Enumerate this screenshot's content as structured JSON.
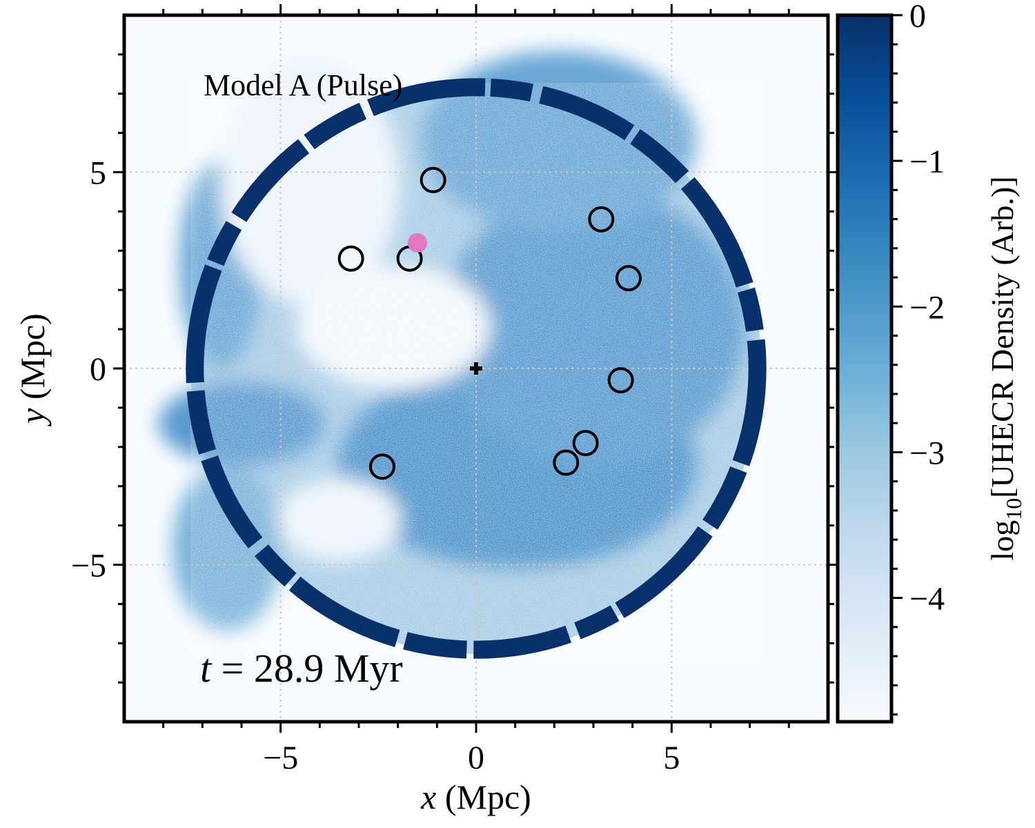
{
  "chart_data": {
    "type": "heatmap",
    "annotation_model": "Model A (Pulse)",
    "annotation_time": {
      "symbol": "t",
      "eq": " = ",
      "value": "28.9 Myr"
    },
    "xlabel": {
      "symbol": "x",
      "unit": " (Mpc)"
    },
    "ylabel": {
      "symbol": "y",
      "unit": " (Mpc)"
    },
    "xlim": [
      -9,
      9
    ],
    "ylim": [
      -9,
      9
    ],
    "x_ticks": [
      {
        "value": -5,
        "label": "−5"
      },
      {
        "value": 0,
        "label": "0"
      },
      {
        "value": 5,
        "label": "5"
      }
    ],
    "y_ticks": [
      {
        "value": 5,
        "label": "5"
      },
      {
        "value": 0,
        "label": "0"
      },
      {
        "value": -5,
        "label": "−5"
      }
    ],
    "grid": true,
    "colorbar": {
      "label_prefix": "log",
      "label_sub": "10",
      "label_main": "[UHECR Density (Arb.)]",
      "range": [
        -4.85,
        0
      ],
      "ticks": [
        {
          "value": 0,
          "label": "0"
        },
        {
          "value": -1,
          "label": "−1"
        },
        {
          "value": -2,
          "label": "−2"
        },
        {
          "value": -3,
          "label": "−3"
        },
        {
          "value": -4,
          "label": "−4"
        }
      ],
      "colormap": [
        "#f7fbff",
        "#deebf7",
        "#c6dbef",
        "#9ecae1",
        "#6baed6",
        "#4292c6",
        "#2171b5",
        "#08519c",
        "#08306b"
      ]
    },
    "shell": {
      "center": [
        0,
        0
      ],
      "radius_mpc": 7.3,
      "color": "#08306b"
    },
    "source_marker": {
      "x": 0,
      "y": 0,
      "symbol": "plus"
    },
    "highlight_point": {
      "x": -1.5,
      "y": 3.2,
      "color": "#e377c2"
    },
    "circles": [
      {
        "x": -1.1,
        "y": 4.8
      },
      {
        "x": -3.2,
        "y": 2.8
      },
      {
        "x": -1.7,
        "y": 2.8
      },
      {
        "x": 3.2,
        "y": 3.8
      },
      {
        "x": 3.9,
        "y": 2.3
      },
      {
        "x": 3.7,
        "y": -0.3
      },
      {
        "x": 2.8,
        "y": -1.9
      },
      {
        "x": 2.3,
        "y": -2.4
      },
      {
        "x": -2.4,
        "y": -2.5
      }
    ]
  }
}
